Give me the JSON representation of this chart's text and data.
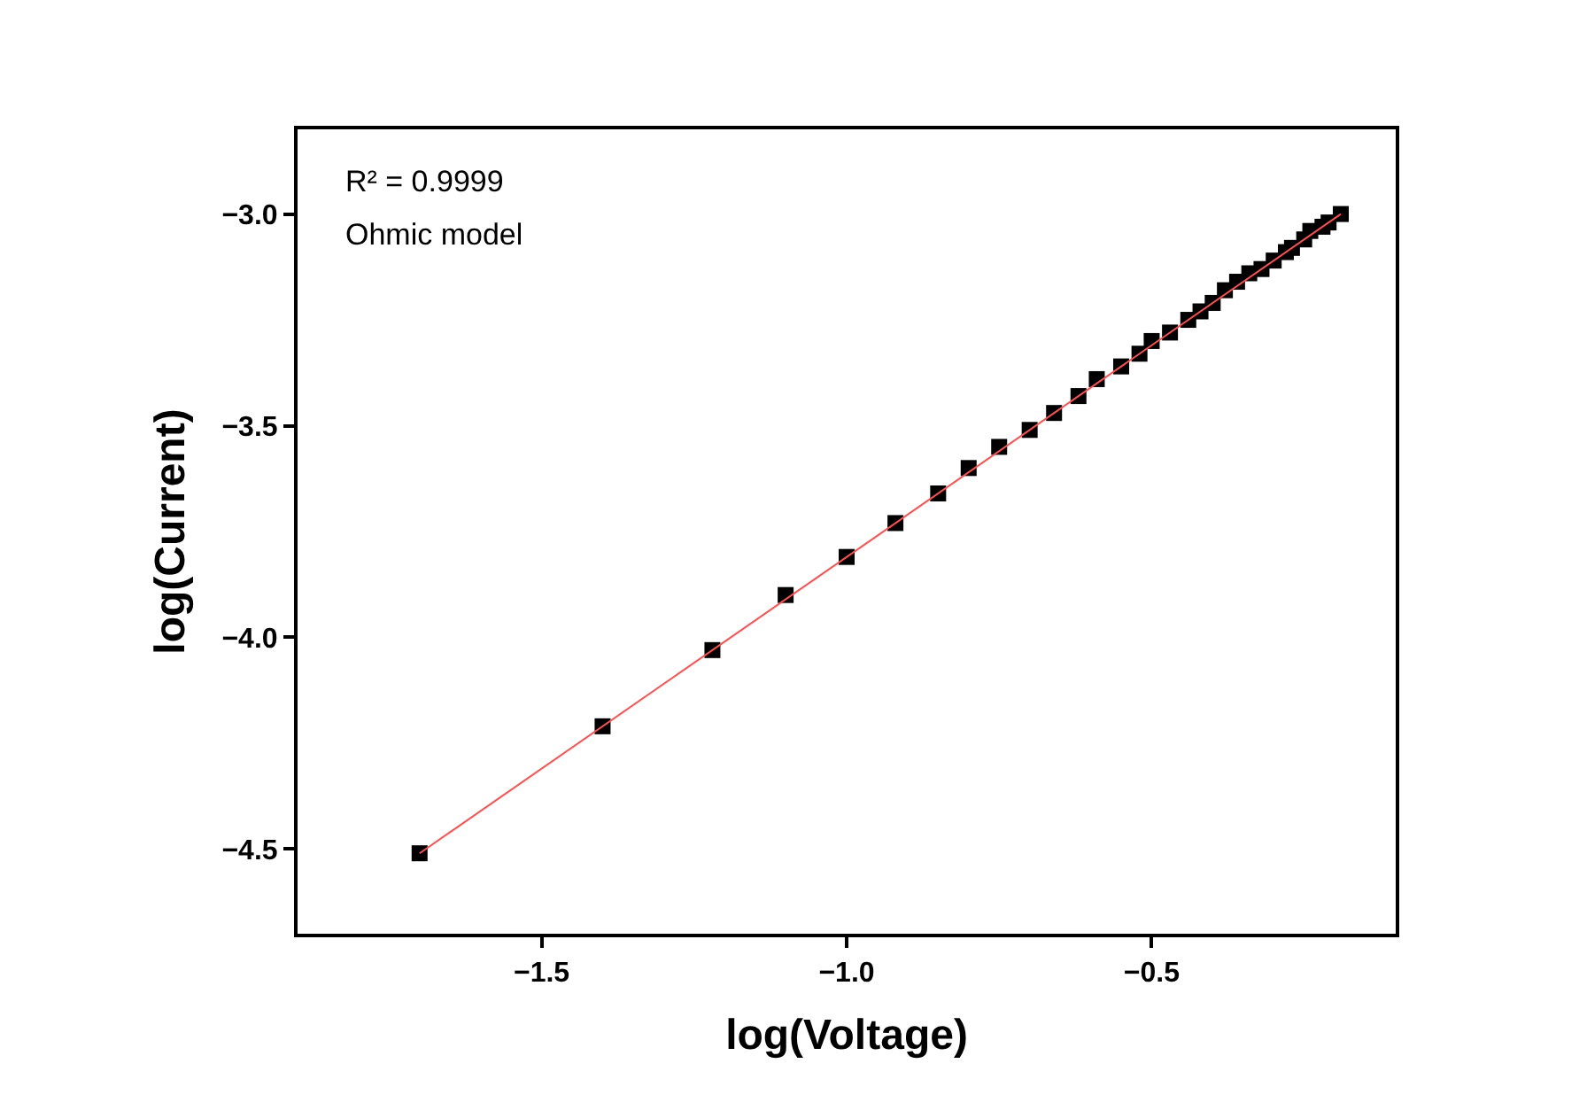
{
  "chart_data": {
    "type": "scatter",
    "xlabel": "log(Voltage)",
    "ylabel": "log(Current)",
    "annotations": [
      "R² = 0.9999",
      "Ohmic model"
    ],
    "xlim": [
      -1.9,
      -0.1
    ],
    "xticks": [
      {
        "value": -1.5,
        "label": "−1.5"
      },
      {
        "value": -1.0,
        "label": "−1.0"
      },
      {
        "value": -0.5,
        "label": "−0.5"
      }
    ],
    "ylim": [
      -4.7,
      -2.8
    ],
    "yticks": [
      {
        "value": -4.5,
        "label": "−4.5"
      },
      {
        "value": -4.0,
        "label": "−4.0"
      },
      {
        "value": -3.5,
        "label": "−3.5"
      },
      {
        "value": -3.0,
        "label": "−3.0"
      }
    ],
    "series": [
      {
        "marker": "square",
        "color": "#000000",
        "x": [
          -1.7,
          -1.4,
          -1.22,
          -1.1,
          -1.0,
          -0.92,
          -0.85,
          -0.8,
          -0.75,
          -0.7,
          -0.66,
          -0.62,
          -0.59,
          -0.55,
          -0.52,
          -0.5,
          -0.47,
          -0.44,
          -0.42,
          -0.4,
          -0.38,
          -0.36,
          -0.34,
          -0.32,
          -0.3,
          -0.28,
          -0.27,
          -0.25,
          -0.24,
          -0.22,
          -0.21,
          -0.19
        ],
        "values": [
          -4.51,
          -4.21,
          -4.03,
          -3.9,
          -3.81,
          -3.73,
          -3.66,
          -3.6,
          -3.55,
          -3.51,
          -3.47,
          -3.43,
          -3.39,
          -3.36,
          -3.33,
          -3.3,
          -3.28,
          -3.25,
          -3.23,
          -3.21,
          -3.18,
          -3.16,
          -3.14,
          -3.13,
          -3.11,
          -3.09,
          -3.08,
          -3.06,
          -3.04,
          -3.03,
          -3.02,
          -3.0
        ]
      },
      {
        "type": "line",
        "marker": "none",
        "line_style": "solid",
        "color": "#ff5050",
        "x": [
          -1.7,
          -0.19
        ],
        "values": [
          -4.51,
          -3.0
        ]
      }
    ]
  }
}
